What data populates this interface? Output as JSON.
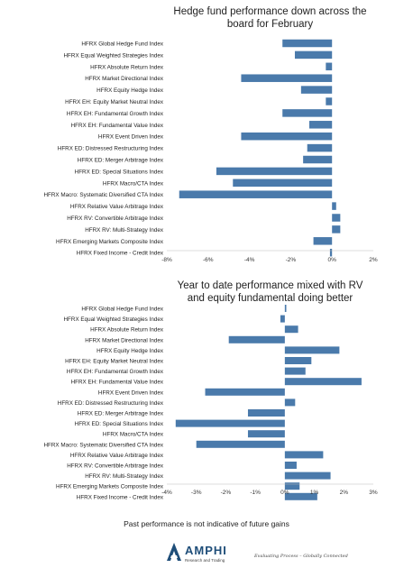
{
  "chart_data": [
    {
      "type": "bar",
      "orientation": "horizontal",
      "title_lines": [
        "Hedge fund performance down across the",
        "board for February"
      ],
      "categories": [
        "HFRX Global Hedge Fund Index",
        "HFRX Equal Weighted Strategies Index",
        "HFRX Absolute Return Index",
        "HFRX Market Directional Index",
        "HFRX Equity Hedge Index",
        "HFRX EH: Equity Market Neutral Index",
        "HFRX EH: Fundamental Growth Index",
        "HFRX EH: Fundamental Value Index",
        "HFRX Event Driven Index",
        "HFRX ED: Distressed Restructuring Index",
        "HFRX ED: Merger Arbitrage Index",
        "HFRX ED: Special Situations Index",
        "HFRX Macro/CTA Index",
        "HFRX Macro: Systematic Diversified CTA Index",
        "HFRX Relative Value Arbitrage Index",
        "HFRX RV: Convertible Arbitrage Index",
        "HFRX RV: Multi-Strategy Index",
        "HFRX Emerging Markets Composite Index",
        "HFRX Fixed Income - Credit Index"
      ],
      "values": [
        -2.4,
        -1.8,
        -0.3,
        -4.4,
        -1.5,
        -0.3,
        -2.4,
        -1.1,
        -4.4,
        -1.2,
        -1.4,
        -5.6,
        -4.8,
        -7.4,
        0.2,
        0.4,
        0.4,
        -0.9,
        -0.1
      ],
      "xlim": [
        -8,
        2
      ],
      "xticks": [
        -8,
        -6,
        -4,
        -2,
        0,
        2
      ],
      "xtick_labels": [
        "-8%",
        "-6%",
        "-4%",
        "-2%",
        "0%",
        "2%"
      ],
      "bar_color": "#4a7aab",
      "grid": false,
      "legend": "none"
    },
    {
      "type": "bar",
      "orientation": "horizontal",
      "title_lines": [
        "Year to date performance mixed with RV",
        "and equity fundamental doing better"
      ],
      "categories": [
        "HFRX Global Hedge Fund Index",
        "HFRX Equal Weighted Strategies Index",
        "HFRX Absolute Return Index",
        "HFRX Market Directional Index",
        "HFRX Equity Hedge Index",
        "HFRX EH: Equity Market Neutral Index",
        "HFRX EH: Fundamental Growth Index",
        "HFRX EH: Fundamental Value Index",
        "HFRX Event Driven Index",
        "HFRX ED: Distressed Restructuring Index",
        "HFRX ED: Merger Arbitrage Index",
        "HFRX ED: Special Situations Index",
        "HFRX Macro/CTA Index",
        "HFRX Macro: Systematic Diversified CTA Index",
        "HFRX Relative Value Arbitrage Index",
        "HFRX RV: Convertible Arbitrage Index",
        "HFRX RV: Multi-Strategy Index",
        "HFRX Emerging Markets Composite Index",
        "HFRX Fixed Income - Credit Index"
      ],
      "values": [
        0.05,
        -0.15,
        0.45,
        -1.9,
        1.85,
        0.9,
        0.7,
        2.6,
        -2.7,
        0.35,
        -1.25,
        -3.7,
        -1.25,
        -3.0,
        1.3,
        0.4,
        1.55,
        0.5,
        1.1
      ],
      "xlim": [
        -4,
        3
      ],
      "xticks": [
        -4,
        -3,
        -2,
        -1,
        0,
        1,
        2,
        3
      ],
      "xtick_labels": [
        "-4%",
        "-3%",
        "-2%",
        "-1%",
        "0%",
        "1%",
        "2%",
        "3%"
      ],
      "bar_color": "#4a7aab",
      "grid": false,
      "legend": "none"
    }
  ],
  "footnote": "Past performance is not indicative of future gains",
  "logo": {
    "name": "AMPHI",
    "subtitle": "Research and Trading",
    "tagline": "Evaluating Process – Globally Connected"
  }
}
